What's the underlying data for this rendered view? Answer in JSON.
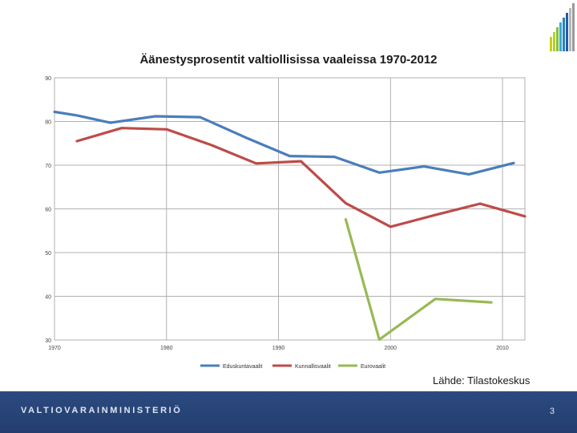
{
  "logo": {
    "colors": [
      "#c8d400",
      "#b7cf2a",
      "#7fc242",
      "#3aa8d8",
      "#2a7fc0",
      "#1f5fa8",
      "#b8b8b8",
      "#9a9a9a"
    ]
  },
  "chart_data": {
    "type": "line",
    "title": "Äänestysprosentit valtiollisissa vaaleissa 1970-2012",
    "xlim": [
      1970,
      2012
    ],
    "ylim": [
      30,
      90
    ],
    "x_ticks": [
      1970,
      1980,
      1990,
      2000,
      2010
    ],
    "y_ticks": [
      30,
      40,
      50,
      60,
      70,
      80,
      90
    ],
    "grid": true,
    "legend_position": "bottom",
    "series": [
      {
        "name": "Eduskuntavaalit",
        "color": "#4a7ebb",
        "x": [
          1970,
          1972,
          1975,
          1979,
          1983,
          1987,
          1991,
          1995,
          1999,
          2003,
          2007,
          2011
        ],
        "y": [
          82.2,
          81.4,
          79.7,
          81.2,
          81.0,
          76.4,
          72.1,
          71.9,
          68.3,
          69.7,
          67.9,
          70.5
        ]
      },
      {
        "name": "Kunnallisvaalit",
        "color": "#be4b48",
        "x": [
          1972,
          1976,
          1980,
          1984,
          1988,
          1992,
          1996,
          2000,
          2004,
          2008,
          2012
        ],
        "y": [
          75.5,
          78.5,
          78.2,
          74.6,
          70.4,
          70.9,
          61.3,
          55.9,
          58.6,
          61.2,
          58.3
        ]
      },
      {
        "name": "Eurovaalit",
        "color": "#98b954",
        "x": [
          1996,
          1999,
          2004,
          2009
        ],
        "y": [
          57.6,
          30.1,
          39.4,
          38.6
        ]
      }
    ]
  },
  "source_text": "Lähde: Tilastokeskus",
  "footer": {
    "brand": "VALTIOVARAINMINISTERIÖ",
    "page_number": "3"
  }
}
